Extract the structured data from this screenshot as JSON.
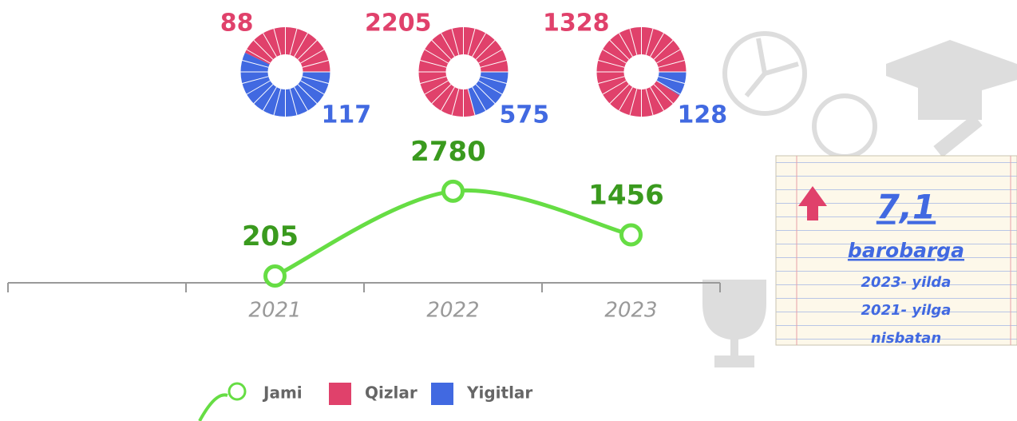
{
  "chart_data": [
    {
      "type": "line",
      "categories": [
        null,
        "2021",
        "2022",
        "2023"
      ],
      "series": [
        {
          "name": "Jami",
          "color": "#66dd44",
          "values": [
            null,
            205,
            2780,
            1456
          ]
        }
      ],
      "ylim": [
        0,
        8000
      ]
    },
    {
      "type": "pie",
      "categories": [
        null,
        "2021",
        "2022",
        "2023"
      ],
      "series": [
        {
          "name": "Qizlar",
          "color": "#e0416b",
          "values": [
            null,
            88,
            2205,
            1328
          ]
        },
        {
          "name": "Yigitlar",
          "color": "#4169e1",
          "values": [
            null,
            117,
            575,
            128
          ]
        }
      ]
    }
  ],
  "note": {
    "ratio": "7,1",
    "unit": "barobarga",
    "lines": [
      "2023- yilda",
      "2021- yilga",
      "nisbatan"
    ]
  }
}
